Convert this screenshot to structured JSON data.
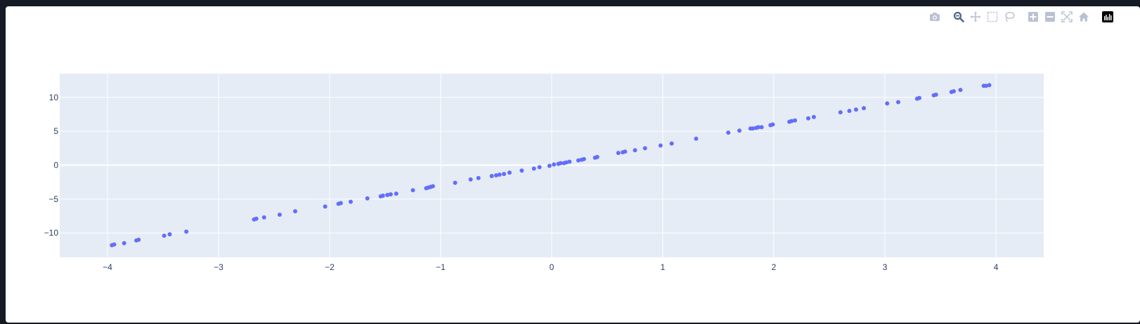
{
  "modebar": {
    "buttons": [
      {
        "name": "camera-icon",
        "group": 0
      },
      {
        "name": "zoom-icon",
        "group": 1,
        "active": true
      },
      {
        "name": "pan-icon",
        "group": 1
      },
      {
        "name": "box-select-icon",
        "group": 1
      },
      {
        "name": "lasso-select-icon",
        "group": 1
      },
      {
        "name": "zoom-in-icon",
        "group": 2
      },
      {
        "name": "zoom-out-icon",
        "group": 2
      },
      {
        "name": "autoscale-icon",
        "group": 2
      },
      {
        "name": "reset-axes-icon",
        "group": 2
      },
      {
        "name": "plotly-logo-icon",
        "group": 3
      }
    ]
  },
  "colors": {
    "plot_bg": "#e5ecf6",
    "grid": "#ffffff",
    "marker": "#636efa",
    "tick_text": "#2a3f5f",
    "modebar_icon": "#b9c2d0",
    "modebar_active": "#506784",
    "logo_bg": "#000000"
  },
  "chart_data": {
    "type": "scatter",
    "title": "",
    "xlabel": "",
    "ylabel": "",
    "xlim": [
      -4.43,
      4.43
    ],
    "ylim": [
      -13.6,
      13.5
    ],
    "xticks": [
      -4,
      -3,
      -2,
      -1,
      0,
      1,
      2,
      3,
      4
    ],
    "xtick_labels": [
      "−4",
      "−3",
      "−2",
      "−1",
      "0",
      "1",
      "2",
      "3",
      "4"
    ],
    "yticks": [
      -10,
      -5,
      0,
      5,
      10
    ],
    "ytick_labels": [
      "−10",
      "−5",
      "0",
      "5",
      "10"
    ],
    "grid": true,
    "legend": false,
    "series": [
      {
        "x": [
          -3.96,
          -3.94,
          -3.85,
          -3.74,
          -3.72,
          -3.49,
          -3.44,
          -3.29,
          -2.68,
          -2.66,
          -2.59,
          -2.45,
          -2.31,
          -2.04,
          -1.92,
          -1.9,
          -1.81,
          -1.66,
          -1.54,
          -1.52,
          -1.48,
          -1.45,
          -1.4,
          -1.25,
          -1.13,
          -1.11,
          -1.09,
          -1.07,
          -0.87,
          -0.73,
          -0.66,
          -0.54,
          -0.5,
          -0.47,
          -0.43,
          -0.38,
          -0.27,
          -0.16,
          -0.11,
          -0.02,
          0.02,
          0.06,
          0.08,
          0.11,
          0.13,
          0.16,
          0.24,
          0.27,
          0.29,
          0.39,
          0.41,
          0.6,
          0.64,
          0.66,
          0.75,
          0.84,
          0.98,
          1.08,
          1.3,
          1.59,
          1.69,
          1.79,
          1.81,
          1.84,
          1.86,
          1.89,
          1.97,
          1.99,
          2.14,
          2.16,
          2.19,
          2.31,
          2.36,
          2.6,
          2.68,
          2.74,
          2.81,
          3.02,
          3.12,
          3.29,
          3.31,
          3.44,
          3.46,
          3.6,
          3.62,
          3.68,
          3.89,
          3.91,
          3.94
        ],
        "y": [
          -11.8,
          -11.7,
          -11.5,
          -11.1,
          -11.0,
          -10.4,
          -10.2,
          -9.8,
          -8.0,
          -7.9,
          -7.7,
          -7.3,
          -6.8,
          -6.1,
          -5.7,
          -5.6,
          -5.4,
          -4.9,
          -4.6,
          -4.5,
          -4.4,
          -4.3,
          -4.2,
          -3.7,
          -3.4,
          -3.3,
          -3.2,
          -3.1,
          -2.6,
          -2.1,
          -1.9,
          -1.6,
          -1.5,
          -1.4,
          -1.3,
          -1.1,
          -0.8,
          -0.5,
          -0.3,
          -0.1,
          0.1,
          0.2,
          0.3,
          0.3,
          0.4,
          0.5,
          0.7,
          0.8,
          0.9,
          1.1,
          1.2,
          1.8,
          1.9,
          2.0,
          2.2,
          2.5,
          2.9,
          3.2,
          3.9,
          4.8,
          5.1,
          5.4,
          5.4,
          5.5,
          5.6,
          5.6,
          5.9,
          6.0,
          6.4,
          6.5,
          6.6,
          6.9,
          7.1,
          7.8,
          8.0,
          8.2,
          8.4,
          9.1,
          9.3,
          9.8,
          9.9,
          10.3,
          10.4,
          10.8,
          10.9,
          11.1,
          11.7,
          11.7,
          11.8
        ]
      }
    ]
  }
}
